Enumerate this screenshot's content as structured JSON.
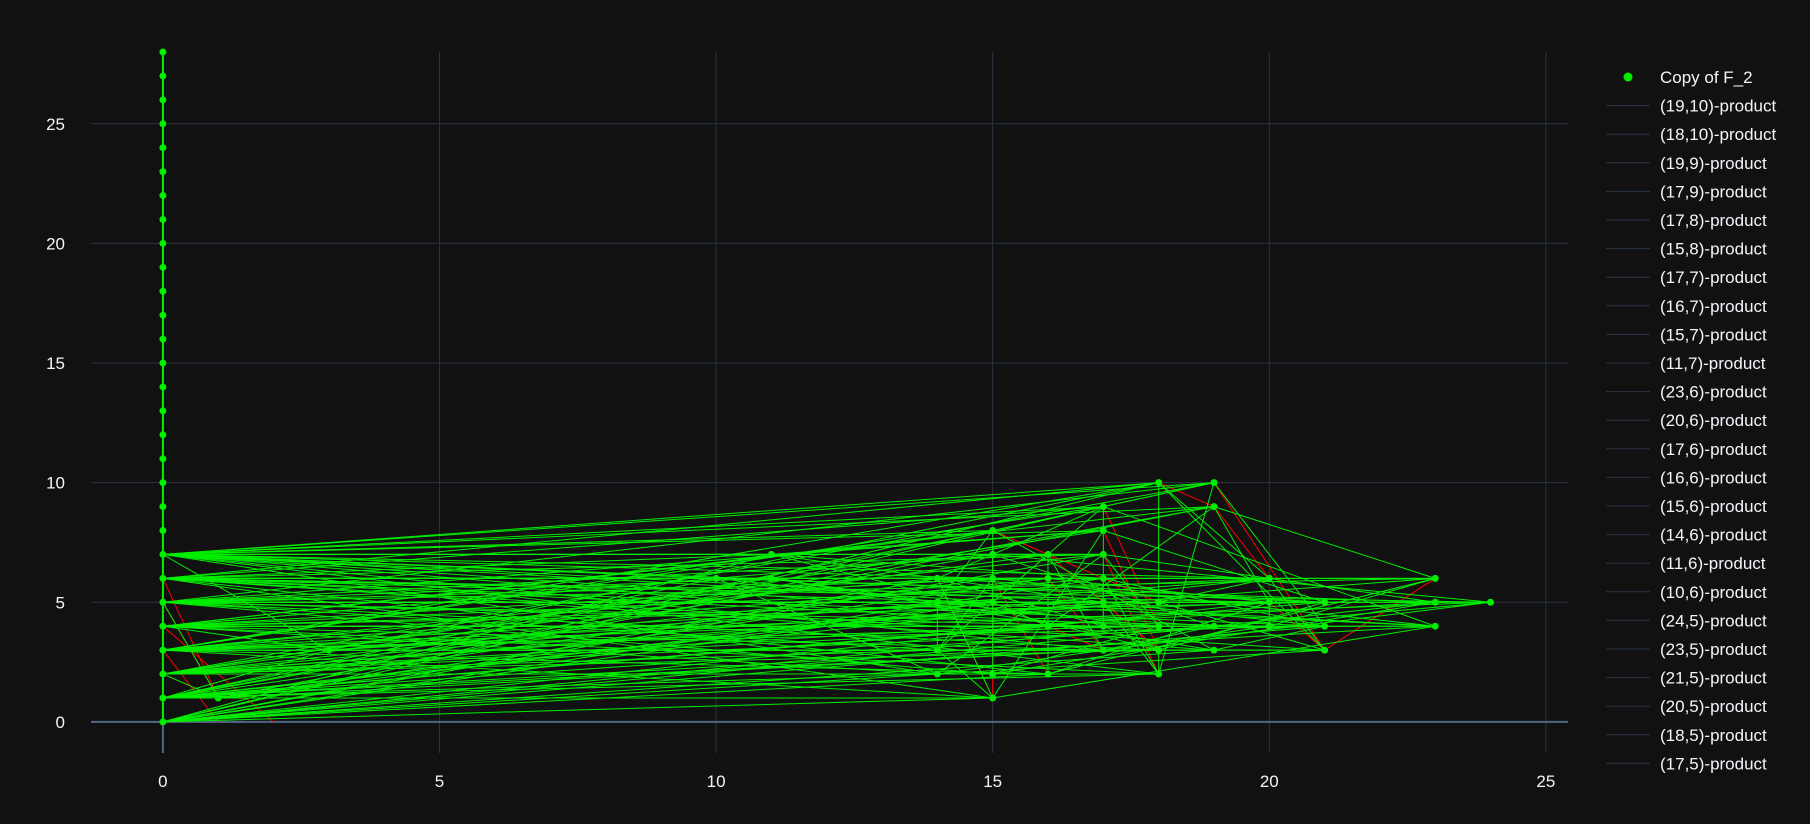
{
  "theme": {
    "background": "#111111",
    "grid_color": "#283442",
    "zero_line_color": "#506784",
    "text_color": "#f2f5fa",
    "product_edge_color": "#00ee00",
    "copy_edge_color": "#ff0000",
    "marker_color": "#00ee00"
  },
  "chart_data": {
    "type": "scatter",
    "x_ticks": [
      0,
      5,
      10,
      15,
      20,
      25
    ],
    "y_ticks": [
      0,
      5,
      10,
      15,
      20,
      25
    ],
    "xlim": [
      -1.3,
      25.4
    ],
    "ylim": [
      -1.3,
      28
    ],
    "grid": true,
    "legend_position": "right",
    "legend": [
      "Copy of F_2",
      "(19,10)-product",
      "(18,10)-product",
      "(19,9)-product",
      "(17,9)-product",
      "(17,8)-product",
      "(15,8)-product",
      "(17,7)-product",
      "(16,7)-product",
      "(15,7)-product",
      "(11,7)-product",
      "(23,6)-product",
      "(20,6)-product",
      "(17,6)-product",
      "(16,6)-product",
      "(15,6)-product",
      "(14,6)-product",
      "(11,6)-product",
      "(10,6)-product",
      "(24,5)-product",
      "(23,5)-product",
      "(21,5)-product",
      "(20,5)-product",
      "(18,5)-product",
      "(17,5)-product"
    ],
    "axis_points": {
      "x": 0,
      "y_values": [
        0,
        1,
        2,
        3,
        4,
        5,
        6,
        7,
        8,
        9,
        10,
        11,
        12,
        13,
        14,
        15,
        16,
        17,
        18,
        19,
        20,
        21,
        22,
        23,
        24,
        25,
        26,
        27,
        28
      ]
    },
    "product_points": [
      [
        18,
        10
      ],
      [
        19,
        10
      ],
      [
        19,
        9
      ],
      [
        17,
        9
      ],
      [
        17,
        8
      ],
      [
        15,
        8
      ],
      [
        17,
        7
      ],
      [
        16,
        7
      ],
      [
        15,
        7
      ],
      [
        11,
        7
      ],
      [
        23,
        6
      ],
      [
        20,
        6
      ],
      [
        17,
        6
      ],
      [
        16,
        6
      ],
      [
        15,
        6
      ],
      [
        14,
        6
      ],
      [
        11,
        6
      ],
      [
        10,
        6
      ],
      [
        24,
        5
      ],
      [
        23,
        5
      ],
      [
        21,
        5
      ],
      [
        20,
        5
      ],
      [
        18,
        5
      ],
      [
        17,
        5
      ],
      [
        15,
        5
      ],
      [
        14,
        5
      ],
      [
        23,
        4
      ],
      [
        21,
        4
      ],
      [
        20,
        4
      ],
      [
        19,
        4
      ],
      [
        18,
        4
      ],
      [
        17,
        4
      ],
      [
        16,
        4
      ],
      [
        21,
        3
      ],
      [
        18,
        3
      ],
      [
        17,
        3
      ],
      [
        19,
        3
      ],
      [
        14,
        3
      ],
      [
        18,
        2
      ],
      [
        16,
        2
      ],
      [
        15,
        2
      ],
      [
        14,
        2
      ],
      [
        15,
        1
      ],
      [
        1,
        1
      ],
      [
        3,
        3
      ]
    ],
    "copy_edges": [
      [
        [
          18,
          10
        ],
        [
          19,
          9
        ]
      ],
      [
        [
          19,
          10
        ],
        [
          21,
          3
        ]
      ],
      [
        [
          19,
          9
        ],
        [
          21,
          3
        ]
      ],
      [
        [
          17,
          9
        ],
        [
          18,
          4
        ]
      ],
      [
        [
          17,
          8
        ],
        [
          18,
          3
        ]
      ],
      [
        [
          17,
          7
        ],
        [
          18,
          2
        ]
      ],
      [
        [
          17,
          6
        ],
        [
          18,
          5
        ]
      ],
      [
        [
          17,
          5
        ],
        [
          18,
          3
        ]
      ],
      [
        [
          15,
          8
        ],
        [
          17,
          6
        ]
      ],
      [
        [
          15,
          7
        ],
        [
          15,
          1
        ]
      ],
      [
        [
          15,
          6
        ],
        [
          16,
          2
        ]
      ],
      [
        [
          15,
          5
        ],
        [
          17,
          3
        ]
      ],
      [
        [
          0,
          6
        ],
        [
          1,
          1
        ]
      ],
      [
        [
          0,
          5
        ],
        [
          1,
          1
        ]
      ],
      [
        [
          0,
          4
        ],
        [
          2,
          0
        ]
      ],
      [
        [
          0,
          3
        ],
        [
          1,
          0
        ]
      ],
      [
        [
          0,
          2
        ],
        [
          1,
          1
        ]
      ],
      [
        [
          14,
          6
        ],
        [
          15,
          1
        ]
      ],
      [
        [
          16,
          7
        ],
        [
          18,
          3
        ]
      ],
      [
        [
          16,
          6
        ],
        [
          17,
          3
        ]
      ],
      [
        [
          20,
          5
        ],
        [
          21,
          3
        ]
      ],
      [
        [
          23,
          6
        ],
        [
          21,
          3
        ]
      ]
    ]
  }
}
